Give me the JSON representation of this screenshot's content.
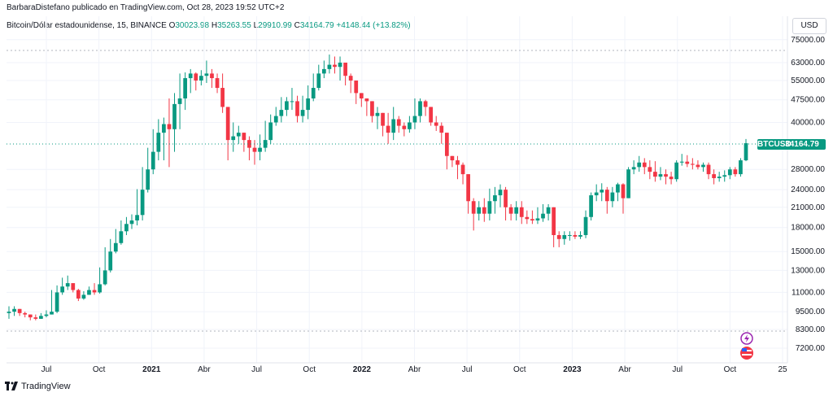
{
  "attribution": "BarbaraDistefano publicado en TradingView.com, Oct 28, 2023 19:52 UTC+2",
  "symbol": {
    "name": "Bitcoin/Dólar estadounidense, 15, BINANCE",
    "open_label": "O",
    "open": "30023.98",
    "high_label": "H",
    "high": "35263.55",
    "low_label": "L",
    "low": "29910.99",
    "close_label": "C",
    "close": "34164.79",
    "change": "+4148.44 (+13.82%)"
  },
  "currency": "USD",
  "price_tag": {
    "symbol": "BTCUSD",
    "value": "34164.79"
  },
  "brand": "TradingView",
  "colors": {
    "up": "#089981",
    "down": "#f23645",
    "grid": "#f0f3fa",
    "accent": "#089981"
  },
  "chart_data": {
    "type": "candlestick",
    "y_scale": "log",
    "y_ticks": [
      75000,
      63000,
      55000,
      47500,
      40000,
      28000,
      24000,
      21000,
      18000,
      15000,
      13000,
      11000,
      9500,
      8300,
      7200
    ],
    "y_tick_labels": [
      "75000.00",
      "63000.00",
      "55000.00",
      "47500.00",
      "40000.00",
      "28000.00",
      "24000.00",
      "21000.00",
      "18000.00",
      "15000.00",
      "13000.00",
      "11000.00",
      "9500.00",
      "8300.00",
      "7200.00"
    ],
    "x_ticks": [
      {
        "label": "Jul",
        "bold": false
      },
      {
        "label": "Oct",
        "bold": false
      },
      {
        "label": "2021",
        "bold": true
      },
      {
        "label": "Abr",
        "bold": false
      },
      {
        "label": "Jul",
        "bold": false
      },
      {
        "label": "Oct",
        "bold": false
      },
      {
        "label": "2022",
        "bold": true
      },
      {
        "label": "Abr",
        "bold": false
      },
      {
        "label": "Jul",
        "bold": false
      },
      {
        "label": "Oct",
        "bold": false
      },
      {
        "label": "2023",
        "bold": true
      },
      {
        "label": "Abr",
        "bold": false
      },
      {
        "label": "Jul",
        "bold": false
      },
      {
        "label": "Oct",
        "bold": false
      },
      {
        "label": "25",
        "bold": false
      }
    ],
    "last_price": 34164.79,
    "closes": [
      9500,
      9700,
      9400,
      9300,
      9100,
      9000,
      9200,
      9300,
      9500,
      11000,
      11500,
      11800,
      11200,
      10500,
      10800,
      11200,
      11000,
      11700,
      13000,
      15000,
      16000,
      17500,
      18500,
      19000,
      19800,
      24000,
      28000,
      32000,
      37000,
      39500,
      38000,
      46000,
      48000,
      56000,
      58000,
      55000,
      57000,
      58000,
      56000,
      52000,
      45000,
      35000,
      36000,
      37000,
      35000,
      33000,
      32000,
      33000,
      35000,
      40000,
      42000,
      44000,
      47000,
      47000,
      42000,
      44000,
      48000,
      52000,
      58000,
      60000,
      62000,
      61000,
      63000,
      57000,
      55000,
      50000,
      48000,
      47000,
      42000,
      43000,
      39000,
      37000,
      41000,
      39000,
      38000,
      40000,
      42000,
      47000,
      45000,
      40000,
      39000,
      37000,
      31000,
      30000,
      29000,
      27000,
      22000,
      20000,
      21000,
      20000,
      22000,
      23000,
      24000,
      21000,
      20000,
      21000,
      19500,
      19200,
      19000,
      19300,
      20000,
      21000,
      17000,
      16500,
      17000,
      17000,
      16800,
      17000,
      19500,
      23000,
      23500,
      24000,
      22000,
      23500,
      25000,
      22500,
      28000,
      28500,
      29500,
      28500,
      27500,
      26500,
      27000,
      26500,
      26000,
      29500,
      29700,
      29200,
      29000,
      28500,
      29000,
      27000,
      26200,
      26500,
      26800,
      28000,
      27000,
      30000,
      34164.79
    ],
    "lows": [
      9000,
      9200,
      9200,
      9100,
      8900,
      8900,
      9000,
      9100,
      9300,
      9400,
      10800,
      11200,
      11000,
      10300,
      10400,
      10800,
      10800,
      10900,
      11600,
      12800,
      14800,
      15800,
      17000,
      17800,
      18300,
      19000,
      23500,
      27000,
      30000,
      30000,
      28500,
      32000,
      38000,
      44000,
      50000,
      51000,
      53000,
      54000,
      52000,
      50000,
      43000,
      30000,
      32000,
      34000,
      32000,
      30000,
      29000,
      30000,
      32000,
      34000,
      39000,
      40000,
      42000,
      44000,
      40000,
      40000,
      41000,
      47000,
      51000,
      56000,
      58000,
      58000,
      55000,
      53000,
      50000,
      46000,
      45000,
      42000,
      40000,
      38000,
      36000,
      34000,
      35000,
      37000,
      36000,
      37000,
      38000,
      40000,
      42000,
      39000,
      37500,
      34000,
      28000,
      28500,
      26000,
      25000,
      20000,
      17600,
      19000,
      18800,
      19000,
      20000,
      21000,
      19000,
      19000,
      19000,
      18500,
      18500,
      18500,
      18500,
      18800,
      19000,
      15500,
      15500,
      15800,
      16300,
      16500,
      16500,
      16600,
      19000,
      22000,
      22000,
      20000,
      21000,
      22000,
      20000,
      22500,
      27000,
      27500,
      27000,
      26000,
      25500,
      25800,
      25000,
      25000,
      25500,
      28800,
      28500,
      28000,
      28000,
      27500,
      26000,
      25000,
      25500,
      25500,
      26000,
      26500,
      26500,
      29800
    ],
    "highs": [
      9900,
      9900,
      9700,
      9500,
      9300,
      9300,
      9400,
      9600,
      11200,
      11600,
      12300,
      12500,
      11800,
      11300,
      11100,
      11500,
      11800,
      13300,
      15500,
      16500,
      17800,
      19000,
      19500,
      19900,
      24100,
      28500,
      33000,
      38000,
      41000,
      41500,
      48000,
      50000,
      58000,
      58500,
      60000,
      58500,
      59500,
      64000,
      60000,
      58000,
      58000,
      41000,
      40000,
      39000,
      37000,
      36000,
      35000,
      36500,
      40500,
      42500,
      45000,
      48500,
      48500,
      52000,
      49000,
      49000,
      53000,
      58000,
      62000,
      64000,
      67000,
      66000,
      66000,
      60000,
      58000,
      52000,
      50000,
      48000,
      44000,
      45000,
      42000,
      43000,
      45000,
      42000,
      40000,
      42000,
      48000,
      48000,
      47500,
      44000,
      42000,
      40000,
      32000,
      31000,
      31000,
      29500,
      23000,
      22500,
      22000,
      22500,
      24200,
      24500,
      25000,
      24500,
      21500,
      22000,
      22000,
      20500,
      20500,
      21000,
      21500,
      21500,
      21000,
      17500,
      17500,
      17500,
      17500,
      17500,
      20500,
      23500,
      25000,
      25200,
      24500,
      24500,
      25300,
      25200,
      28500,
      30000,
      31000,
      30500,
      30000,
      29800,
      28500,
      28000,
      27500,
      30000,
      31500,
      31200,
      30500,
      30000,
      29500,
      29500,
      28000,
      27500,
      27800,
      28500,
      28500,
      30500,
      35263.55
    ]
  }
}
